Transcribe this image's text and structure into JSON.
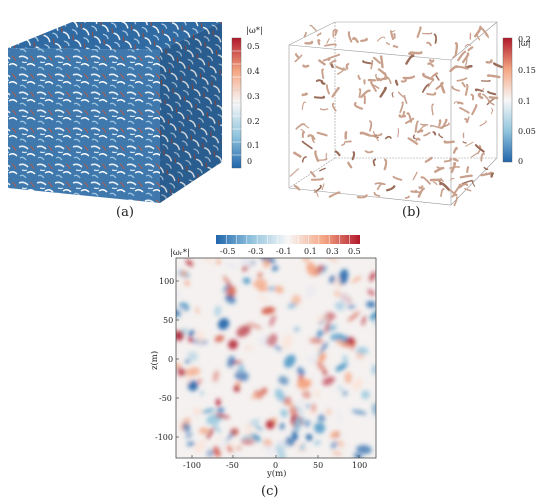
{
  "panel_a": {
    "caption": "(a)",
    "colorbar": {
      "label": "|ω*|",
      "ticks": [
        "0.5",
        "0.4",
        "0.3",
        "0.2",
        "0.1",
        "0"
      ]
    }
  },
  "panel_b": {
    "caption": "(b)",
    "colorbar": {
      "label": "|ω|",
      "ticks": [
        "0.2",
        "0.15",
        "0.1",
        "0.05",
        "0"
      ]
    }
  },
  "panel_c": {
    "caption": "(c)",
    "colorbar": {
      "label": "|ωᵣ*|",
      "ticks": [
        "-0.5",
        "-0.3",
        "-0.1",
        "0.1",
        "0.3",
        "0.5"
      ]
    },
    "xlabel": "y(m)",
    "ylabel": "z(m)",
    "xticks": [
      "-100",
      "-50",
      "0",
      "50",
      "100"
    ],
    "yticks": [
      "100",
      "50",
      "0",
      "-50",
      "-100"
    ]
  },
  "colors": {
    "blue": "#2166ac",
    "white": "#f7f7f7",
    "red": "#b2182b",
    "iso": "#c9a08c"
  }
}
